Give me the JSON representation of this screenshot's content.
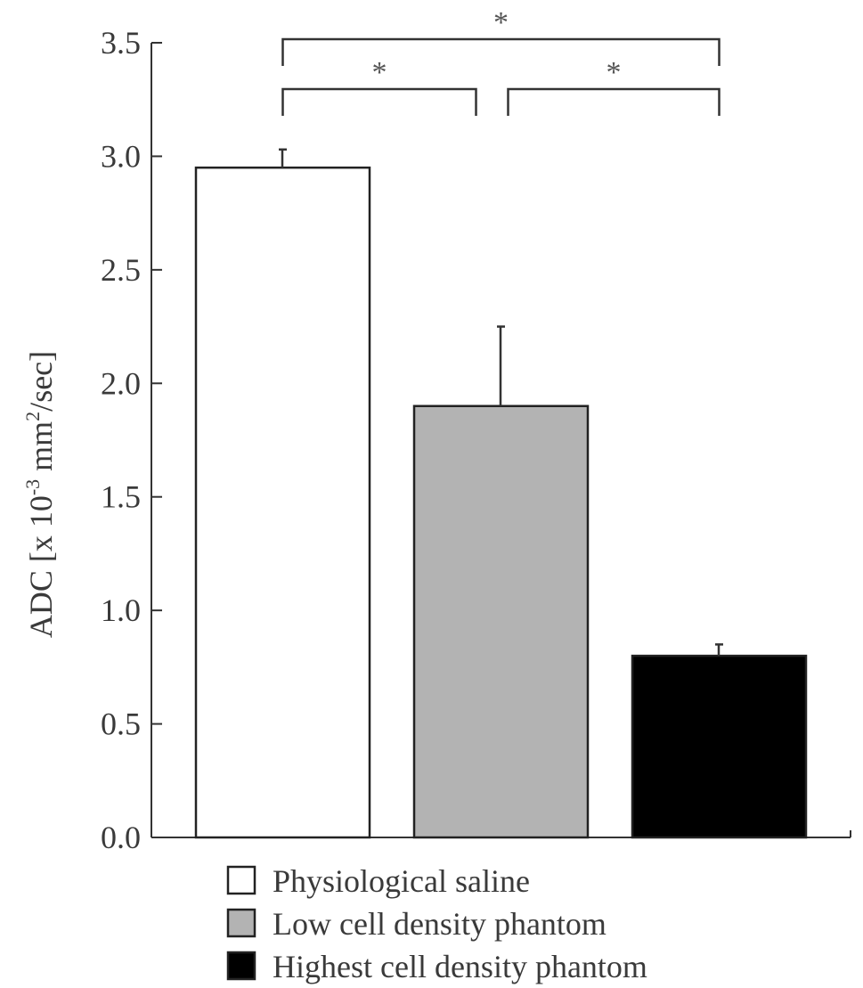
{
  "chart_data": {
    "type": "bar",
    "categories": [
      "Physiological saline",
      "Low cell density phantom",
      "Highest cell density phantom"
    ],
    "values": [
      2.95,
      1.9,
      0.8
    ],
    "errors": [
      0.08,
      0.35,
      0.05
    ],
    "colors": [
      "#ffffff",
      "#b3b3b3",
      "#000000"
    ],
    "ylabel": {
      "main": "ADC [x 10",
      "exponent": "-3",
      "unit_mid": " mm",
      "unit_exp": "2",
      "unit_end": "/sec]"
    },
    "ylim": [
      0,
      3.5
    ],
    "ytick_values": [
      0,
      0.5,
      1,
      1.5,
      2,
      2.5,
      3,
      3.5
    ],
    "ytick_labels": [
      "0.0",
      "0.5",
      "1.0",
      "1.5",
      "2.0",
      "2.5",
      "3.0",
      "3.5"
    ],
    "grid": false,
    "legend_position": "bottom",
    "significance": [
      {
        "from": 0,
        "to": 1,
        "label": "*",
        "level": 1
      },
      {
        "from": 1,
        "to": 2,
        "label": "*",
        "level": 1
      },
      {
        "from": 0,
        "to": 2,
        "label": "*",
        "level": 2
      }
    ]
  }
}
